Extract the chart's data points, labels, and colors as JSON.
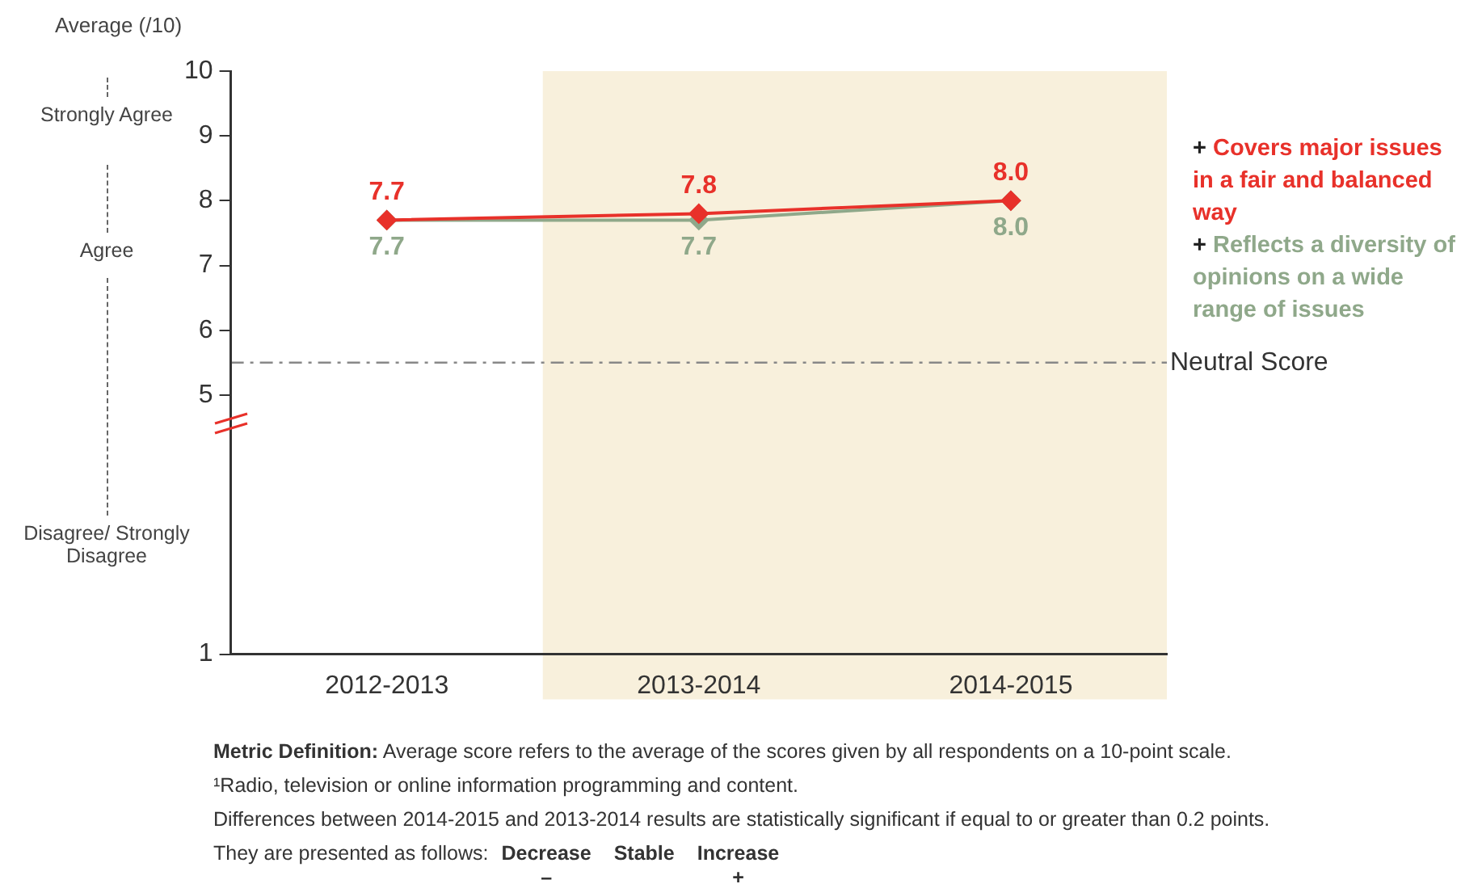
{
  "chart_data": {
    "type": "line",
    "ylabel": "Average (/10)",
    "categories": [
      "2012-2013",
      "2013-2014",
      "2014-2015"
    ],
    "series": [
      {
        "name": "Covers major issues in a fair and balanced way",
        "color": "#e8312a",
        "values": [
          7.7,
          7.8,
          8.0
        ],
        "value_labels": [
          "7.7",
          "7.8",
          "8.0"
        ]
      },
      {
        "name": "Reflects a diversity of opinions on a wide range of issues",
        "color": "#8fa88a",
        "values": [
          7.7,
          7.7,
          8.0
        ],
        "value_labels": [
          "7.7",
          "7.7",
          "8.0"
        ]
      }
    ],
    "ylim": [
      1,
      10
    ],
    "yticks": [
      1,
      5,
      6,
      7,
      8,
      9,
      10
    ],
    "marker": "diamond",
    "grid": false,
    "legend": "right",
    "ref_lines": [
      {
        "axis": "y",
        "value": 5.5,
        "label": "Neutral Score",
        "color": "#888888",
        "line_style": "dashdot"
      }
    ],
    "bands": [
      {
        "axis": "x",
        "from": "2013-2014",
        "to": "2014-2015",
        "color": "#f8f0dc"
      }
    ],
    "annotations": [
      "Strongly Agree",
      "Agree",
      "Disagree/ Strongly Disagree",
      "Metric Definition: Average score refers to the average of the scores given by all respondents on a 10-point scale.",
      "¹Radio, television or online information programming and content.",
      "Differences between 2014-2015 and 2013-2014 results are statistically significant if equal to or greater than 0.2 points.",
      "They are presented as follows:",
      "Decrease",
      "Stable",
      "Increase",
      "–",
      "+",
      "+",
      "+"
    ]
  }
}
